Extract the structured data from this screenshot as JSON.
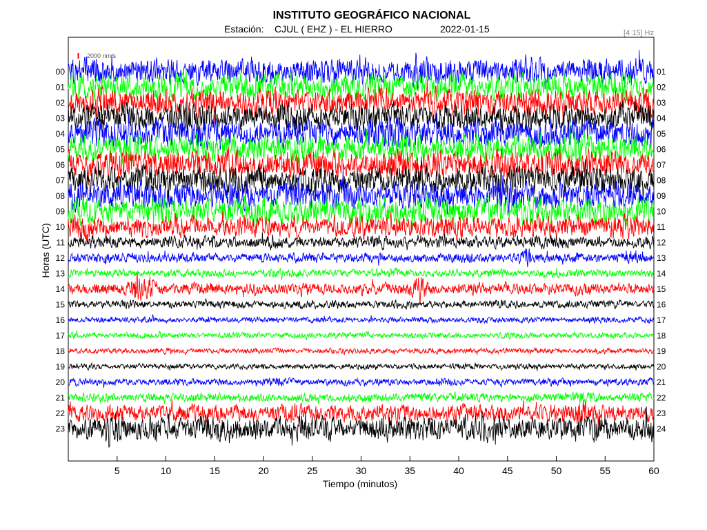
{
  "header": {
    "title": "INSTITUTO GEOGRÁFICO NACIONAL",
    "station_prefix": "Estación:",
    "station": "CJUL ( EHZ ) - EL HIERRO",
    "date": "2022-01-15",
    "filter": "[4 15] Hz"
  },
  "scale": {
    "label": "2000 nm/s",
    "color": "#ff0000"
  },
  "chart_data": {
    "type": "line",
    "title": "INSTITUTO GEOGRÁFICO NACIONAL",
    "xlabel": "Tiempo (minutos)",
    "ylabel": "Horas (UTC)",
    "xlim": [
      0,
      60
    ],
    "x_ticks": [
      "5",
      "10",
      "15",
      "20",
      "25",
      "30",
      "35",
      "40",
      "45",
      "50",
      "55",
      "60"
    ],
    "grid": false,
    "left_labels": [
      "00",
      "01",
      "02",
      "03",
      "04",
      "05",
      "06",
      "07",
      "08",
      "09",
      "10",
      "11",
      "12",
      "13",
      "14",
      "15",
      "16",
      "17",
      "18",
      "19",
      "20",
      "21",
      "22",
      "23"
    ],
    "right_labels": [
      "01",
      "02",
      "03",
      "04",
      "05",
      "06",
      "07",
      "08",
      "09",
      "10",
      "11",
      "12",
      "13",
      "14",
      "15",
      "16",
      "17",
      "18",
      "19",
      "20",
      "21",
      "22",
      "23",
      "24"
    ],
    "colors": [
      "#0000ff",
      "#00ff00",
      "#ff0000",
      "#000000"
    ],
    "amplitude_level": [
      0.6,
      0.62,
      0.62,
      0.62,
      0.66,
      0.64,
      0.64,
      0.62,
      0.64,
      0.62,
      0.5,
      0.28,
      0.22,
      0.18,
      0.26,
      0.18,
      0.13,
      0.13,
      0.12,
      0.12,
      0.16,
      0.2,
      0.4,
      0.55
    ],
    "events": [
      {
        "hour": 14,
        "minute": 7,
        "strength": 1.0
      },
      {
        "hour": 14,
        "minute": 8.5,
        "strength": 0.8
      },
      {
        "hour": 14,
        "minute": 36,
        "strength": 1.1
      },
      {
        "hour": 12,
        "minute": 47,
        "strength": 0.9
      },
      {
        "hour": 21,
        "minute": 53,
        "strength": 0.7
      },
      {
        "hour": 22,
        "minute": 52.5,
        "strength": 0.7
      }
    ]
  }
}
